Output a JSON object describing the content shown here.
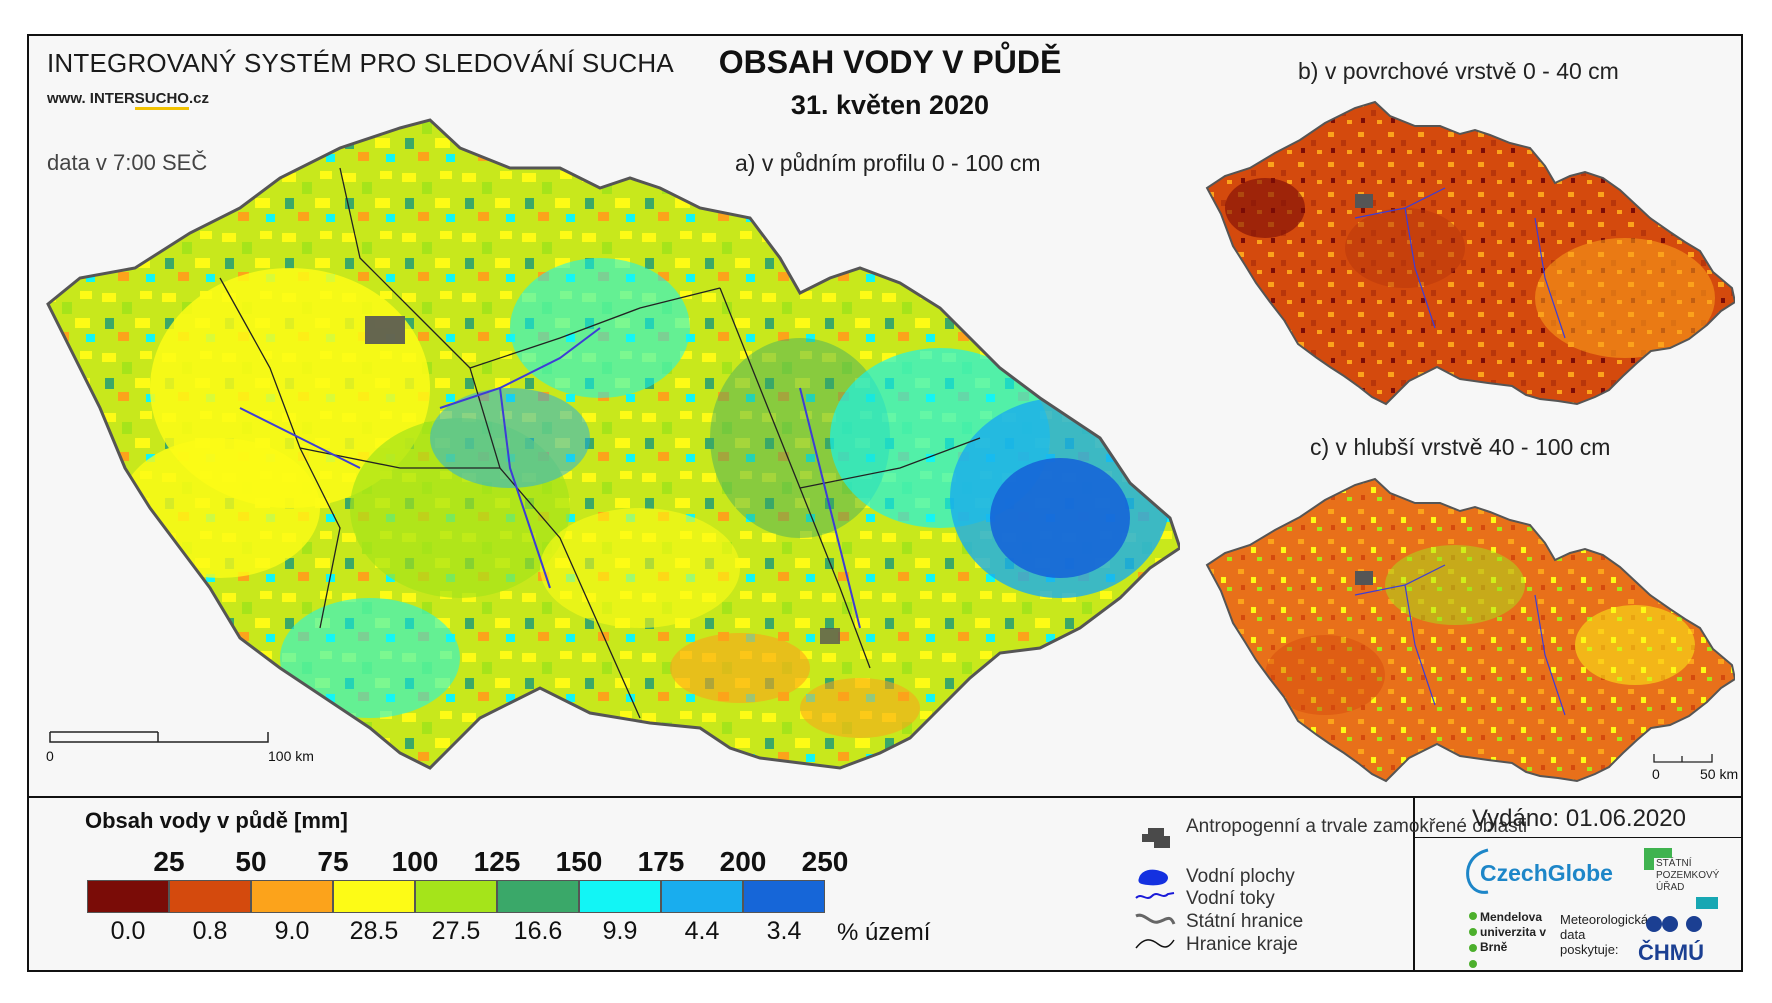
{
  "header": {
    "system_title": "INTEGROVANÝ SYSTÉM PRO SLEDOVÁNÍ SUCHA",
    "website_prefix": "www. INTER",
    "website_highlight": "SUCHO",
    "website_suffix": ".cz",
    "data_time": "data v 7:00 SEČ",
    "main_title": "OBSAH VODY V PŮDĚ",
    "main_date": "31. květen 2020"
  },
  "maps": {
    "a_label": "a) v půdním profilu 0 - 100 cm",
    "b_label": "b) v povrchové vrstvě 0 - 40 cm",
    "c_label": "c) v hlubší vrstvě 40 - 100 cm",
    "scale_main": {
      "start": "0",
      "end": "100 km"
    },
    "scale_small": {
      "start": "0",
      "end": "50 km"
    }
  },
  "legend": {
    "title": "Obsah vody v půdě  [mm]",
    "thresholds": [
      "25",
      "50",
      "75",
      "100",
      "125",
      "150",
      "175",
      "200",
      "250"
    ],
    "colors": [
      "#7a0c07",
      "#d44a0d",
      "#fca31b",
      "#fdfb16",
      "#a5e41a",
      "#3aa869",
      "#12f5f5",
      "#19adee",
      "#1666d8"
    ],
    "percent_values": [
      "0.0",
      "0.8",
      "9.0",
      "28.5",
      "27.5",
      "16.6",
      "9.9",
      "4.4",
      "3.4"
    ],
    "percent_label": "% území"
  },
  "symbols": {
    "anthropogenic": "Antropogenní a trvale zamokřené oblasti",
    "water_bodies": "Vodní plochy",
    "streams": "Vodní toky",
    "state_border": "Státní hranice",
    "region_border": "Hranice kraje"
  },
  "footer": {
    "issued": "Vydáno: 01.06.2020",
    "czechglobe": "CzechGlobe",
    "spu": "STÁTNÍ POZEMKOVÝ ÚŘAD",
    "mendel": "Mendelova univerzita v Brně",
    "meteo": "Meteorologická data poskytuje:",
    "chmu": "ČHMÚ"
  }
}
